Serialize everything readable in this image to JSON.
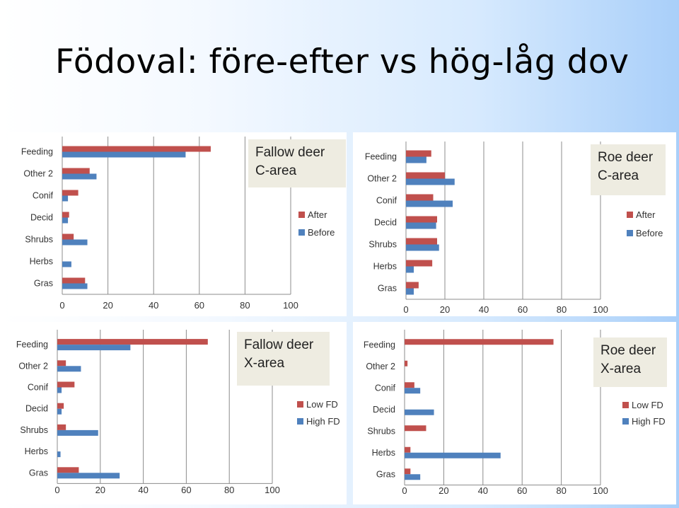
{
  "title": "Födoval: före-efter vs hög-låg dov",
  "colors": {
    "red": "#C0504D",
    "blue": "#4F81BD",
    "box": "#eeece1"
  },
  "chart_data": [
    {
      "type": "bar",
      "orientation": "horizontal",
      "title_lines": [
        "Fallow deer",
        "C-area"
      ],
      "categories": [
        "Feeding",
        "Other 2",
        "Conif",
        "Decid",
        "Shrubs",
        "Herbs",
        "Gras"
      ],
      "series": [
        {
          "name": "After",
          "color": "#C0504D",
          "values": [
            65,
            12,
            7,
            3,
            5,
            0,
            10
          ]
        },
        {
          "name": "Before",
          "color": "#4F81BD",
          "values": [
            54,
            15,
            2.5,
            2.5,
            11,
            4,
            11
          ]
        }
      ],
      "xlim": [
        0,
        100
      ],
      "xticks": [
        "0",
        "20",
        "40",
        "60",
        "80",
        "100"
      ],
      "grid": true,
      "legend_position": "right"
    },
    {
      "type": "bar",
      "orientation": "horizontal",
      "title_lines": [
        "Roe deer",
        "C-area"
      ],
      "categories": [
        "Feeding",
        "Other 2",
        "Conif",
        "Decid",
        "Shrubs",
        "Herbs",
        "Gras"
      ],
      "series": [
        {
          "name": "After",
          "color": "#C0504D",
          "values": [
            13,
            20,
            14,
            16,
            16,
            13.5,
            6.5
          ]
        },
        {
          "name": "Before",
          "color": "#4F81BD",
          "values": [
            10.5,
            25,
            24,
            15.5,
            17,
            4,
            4
          ]
        }
      ],
      "xlim": [
        0,
        100
      ],
      "xticks": [
        "0",
        "20",
        "40",
        "60",
        "80",
        "100"
      ],
      "grid": true,
      "legend_position": "right"
    },
    {
      "type": "bar",
      "orientation": "horizontal",
      "title_lines": [
        "Fallow deer",
        "X-area"
      ],
      "categories": [
        "Feeding",
        "Other 2",
        "Conif",
        "Decid",
        "Shrubs",
        "Herbs",
        "Gras"
      ],
      "series": [
        {
          "name": "Low FD",
          "color": "#C0504D",
          "values": [
            70,
            4,
            8,
            3,
            4,
            0,
            10
          ]
        },
        {
          "name": "High FD",
          "color": "#4F81BD",
          "values": [
            34,
            11,
            2,
            2,
            19,
            1.5,
            29
          ]
        }
      ],
      "xlim": [
        0,
        100
      ],
      "xticks": [
        "0",
        "20",
        "40",
        "60",
        "80",
        "100"
      ],
      "grid": true,
      "legend_position": "right"
    },
    {
      "type": "bar",
      "orientation": "horizontal",
      "title_lines": [
        "Roe deer",
        "X-area"
      ],
      "categories": [
        "Feeding",
        "Other 2",
        "Conif",
        "Decid",
        "Shrubs",
        "Herbs",
        "Gras"
      ],
      "series": [
        {
          "name": "Low FD",
          "color": "#C0504D",
          "values": [
            76,
            1.5,
            5,
            0,
            11,
            3,
            3
          ]
        },
        {
          "name": "High FD",
          "color": "#4F81BD",
          "values": [
            0,
            0,
            8,
            15,
            0,
            49,
            8
          ]
        }
      ],
      "xlim": [
        0,
        100
      ],
      "xticks": [
        "0",
        "20",
        "40",
        "60",
        "80",
        "100"
      ],
      "grid": true,
      "legend_position": "right"
    }
  ]
}
